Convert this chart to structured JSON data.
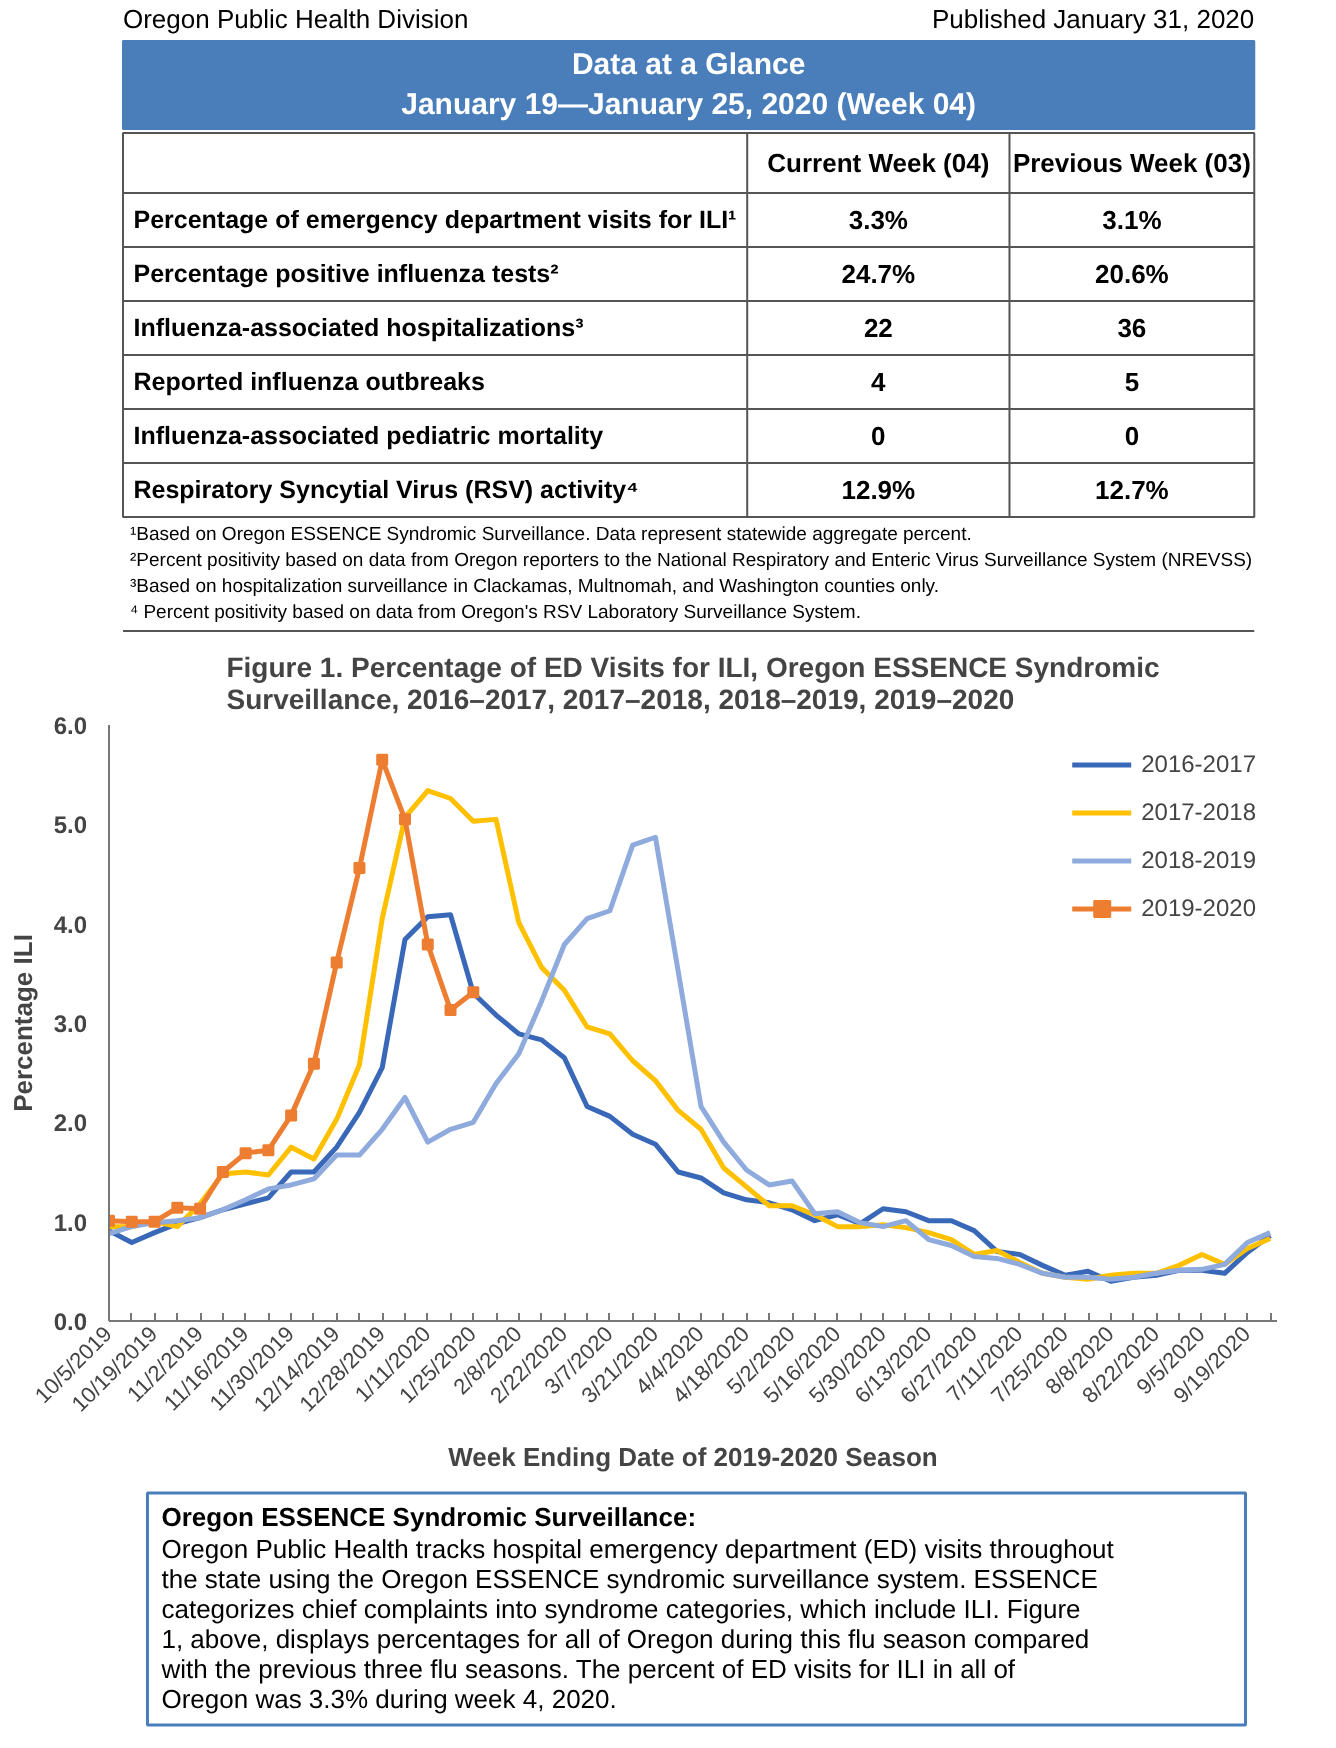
{
  "chart_data": [
    {
      "type": "other",
      "title": "Data at a Glance",
      "subtitle": "January 19—January 25, 2020 (Week 04)",
      "annotations": [
        "Oregon Public Health Division",
        "Published January 31, 2020",
        "¹Based on Oregon ESSENCE Syndromic Surveillance. Data represent statewide aggregate percent.",
        "²Percent positivity based on data from Oregon reporters to the National Respiratory and Enteric Virus Surveillance System (NREVSS)",
        "³Based on hospitalization surveillance in Clackamas, Multnomah, and Washington counties only.",
        "⁴ Percent positivity based on data from Oregon's RSV Laboratory Surveillance System."
      ],
      "categories": [
        "Current Week (04)",
        "Previous Week (03)"
      ],
      "y_categories": [
        "Percentage of emergency department visits for ILI¹",
        "Percentage positive influenza tests²",
        "Influenza-associated hospitalizations³",
        "Reported influenza outbreaks",
        "Influenza-associated pediatric mortality",
        "Respiratory Syncytial Virus (RSV) activity⁴"
      ],
      "cell_labels": [
        [
          "3.3%",
          "3.1%"
        ],
        [
          "24.7%",
          "20.6%"
        ],
        [
          "22",
          "36"
        ],
        [
          "4",
          "5"
        ],
        [
          "0",
          "0"
        ],
        [
          "12.9%",
          "12.7%"
        ]
      ]
    },
    {
      "type": "line",
      "title": "Figure 1. Percentage of ED Visits for ILI, Oregon ESSENCE Syndromic Surveillance, 2016–2017, 2017–2018, 2018–2019, 2019–2020",
      "xlabel": "Week Ending Date of 2019-2020 Season",
      "ylabel": "Percentage ILI",
      "categories": [
        "10/5/2019",
        null,
        "10/19/2019",
        null,
        "11/2/2019",
        null,
        "11/16/2019",
        null,
        "11/30/2019",
        null,
        "12/14/2019",
        null,
        "12/28/2019",
        null,
        "1/11/2020",
        null,
        "1/25/2020",
        null,
        "2/8/2020",
        null,
        "2/22/2020",
        null,
        "3/7/2020",
        null,
        "3/21/2020",
        null,
        "4/4/2020",
        null,
        "4/18/2020",
        null,
        "5/2/2020",
        null,
        "5/16/2020",
        null,
        "5/30/2020",
        null,
        "6/13/2020",
        null,
        "6/27/2020",
        null,
        "7/11/2020",
        null,
        "7/25/2020",
        null,
        "8/8/2020",
        null,
        "8/22/2020",
        null,
        "9/5/2020",
        null,
        "9/19/2020",
        null
      ],
      "ylim": [
        0,
        6
      ],
      "yticks": [
        {
          "value": 0,
          "label": "0.0"
        },
        {
          "value": 1,
          "label": "1.0"
        },
        {
          "value": 2,
          "label": "2.0"
        },
        {
          "value": 3,
          "label": "3.0"
        },
        {
          "value": 4,
          "label": "4.0"
        },
        {
          "value": 5,
          "label": "5.0"
        },
        {
          "value": 6,
          "label": "6.0"
        }
      ],
      "grid": false,
      "legend": "top right",
      "series": [
        {
          "name": "2016-2017",
          "color": "#3a68b8",
          "values": [
            0.91,
            0.79,
            0.89,
            0.98,
            1.04,
            1.12,
            1.18,
            1.24,
            1.5,
            1.5,
            1.75,
            2.1,
            2.55,
            3.84,
            4.07,
            4.09,
            3.3,
            3.08,
            2.89,
            2.83,
            2.65,
            2.16,
            2.06,
            1.88,
            1.78,
            1.5,
            1.44,
            1.29,
            1.22,
            1.19,
            1.12,
            1.01,
            1.07,
            0.98,
            1.13,
            1.1,
            1.01,
            1.01,
            0.91,
            0.7,
            0.67,
            0.56,
            0.46,
            0.5,
            0.4,
            0.44,
            0.46,
            0.51,
            0.51,
            0.48,
            0.69,
            0.86
          ]
        },
        {
          "name": "2017-2018",
          "color": "#ffc000",
          "values": [
            0.95,
            0.95,
            1.0,
            0.95,
            1.18,
            1.48,
            1.5,
            1.47,
            1.75,
            1.63,
            2.03,
            2.58,
            4.05,
            5.07,
            5.34,
            5.26,
            5.03,
            5.05,
            4.01,
            3.56,
            3.33,
            2.96,
            2.89,
            2.62,
            2.42,
            2.12,
            1.93,
            1.54,
            1.35,
            1.16,
            1.16,
            1.07,
            0.95,
            0.95,
            0.97,
            0.94,
            0.89,
            0.82,
            0.67,
            0.71,
            0.59,
            0.48,
            0.44,
            0.42,
            0.46,
            0.48,
            0.48,
            0.56,
            0.67,
            0.57,
            0.73,
            0.83
          ]
        },
        {
          "name": "2018-2019",
          "color": "#8faadc",
          "values": [
            0.88,
            0.95,
            0.99,
            1.01,
            1.04,
            1.12,
            1.22,
            1.33,
            1.37,
            1.43,
            1.67,
            1.67,
            1.93,
            2.25,
            1.8,
            1.93,
            2.0,
            2.39,
            2.69,
            3.22,
            3.79,
            4.05,
            4.13,
            4.79,
            4.87,
            3.52,
            2.16,
            1.8,
            1.52,
            1.37,
            1.41,
            1.08,
            1.1,
            0.99,
            0.95,
            1.01,
            0.82,
            0.76,
            0.65,
            0.63,
            0.57,
            0.48,
            0.44,
            0.44,
            0.42,
            0.44,
            0.48,
            0.51,
            0.52,
            0.57,
            0.79,
            0.89
          ]
        },
        {
          "name": "2019-2020",
          "color": "#ed7d31",
          "marker": "square",
          "values": [
            1.01,
            1.0,
            1.0,
            1.14,
            1.13,
            1.5,
            1.69,
            1.72,
            2.07,
            2.59,
            3.61,
            4.56,
            5.65,
            5.05,
            3.79,
            3.13,
            3.31,
            null,
            null,
            null,
            null,
            null,
            null,
            null,
            null,
            null,
            null,
            null,
            null,
            null,
            null,
            null,
            null,
            null,
            null,
            null,
            null,
            null,
            null,
            null,
            null,
            null,
            null,
            null,
            null,
            null,
            null,
            null,
            null,
            null,
            null,
            null
          ]
        }
      ]
    },
    {
      "type": "other",
      "title": "Oregon ESSENCE Syndromic Surveillance:",
      "annotations": [
        "Oregon Public Health tracks hospital emergency department (ED) visits throughout the state using the Oregon ESSENCE syndromic surveillance system. ESSENCE categorizes chief complaints into syndrome categories, which include ILI. Figure 1, above, displays percentages for all of Oregon during this flu season compared with the previous three flu seasons. The percent of ED visits for ILI in all of Oregon was 3.3% during week 4, 2020."
      ]
    }
  ]
}
